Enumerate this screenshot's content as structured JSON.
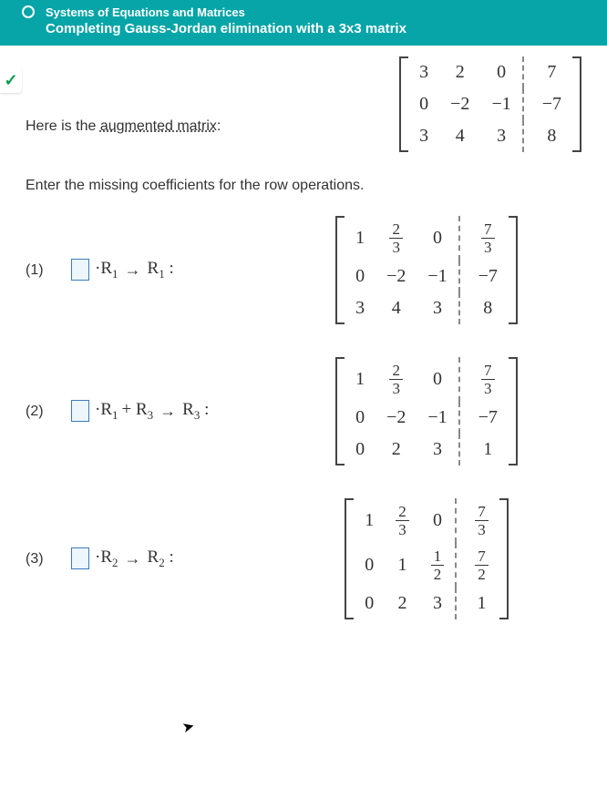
{
  "header": {
    "topic": "Systems of Equations and Matrices",
    "subtitle": "Completing Gauss-Jordan elimination with a 3x3 matrix"
  },
  "intro": {
    "prefix": "Here is the ",
    "link": "augmented matrix",
    "suffix": ":"
  },
  "instruction": "Enter the missing coefficients for the row operations.",
  "matrix0": {
    "rows": [
      [
        "3",
        "2",
        "0",
        "7"
      ],
      [
        "0",
        "−2",
        "−1",
        "−7"
      ],
      [
        "3",
        "4",
        "3",
        "8"
      ]
    ]
  },
  "steps": [
    {
      "label": "(1)",
      "op_parts": {
        "lhs": "·R",
        "lsub": "1",
        "rhs": "R",
        "rsub": "1",
        "plus": ""
      },
      "matrix": {
        "rows": [
          [
            {
              "t": "1"
            },
            {
              "f": [
                "2",
                "3"
              ]
            },
            {
              "t": "0"
            },
            {
              "f": [
                "7",
                "3"
              ]
            }
          ],
          [
            {
              "t": "0"
            },
            {
              "t": "−2"
            },
            {
              "t": "−1"
            },
            {
              "t": "−7"
            }
          ],
          [
            {
              "t": "3"
            },
            {
              "t": "4"
            },
            {
              "t": "3"
            },
            {
              "t": "8"
            }
          ]
        ]
      }
    },
    {
      "label": "(2)",
      "op_parts": {
        "lhs": "·R",
        "lsub": "1",
        "mid": " + R",
        "msub": "3",
        "rhs": "R",
        "rsub": "3"
      },
      "matrix": {
        "rows": [
          [
            {
              "t": "1"
            },
            {
              "f": [
                "2",
                "3"
              ]
            },
            {
              "t": "0"
            },
            {
              "f": [
                "7",
                "3"
              ]
            }
          ],
          [
            {
              "t": "0"
            },
            {
              "t": "−2"
            },
            {
              "t": "−1"
            },
            {
              "t": "−7"
            }
          ],
          [
            {
              "t": "0"
            },
            {
              "t": "2"
            },
            {
              "t": "3"
            },
            {
              "t": "1"
            }
          ]
        ]
      }
    },
    {
      "label": "(3)",
      "op_parts": {
        "lhs": "·R",
        "lsub": "2",
        "rhs": "R",
        "rsub": "2",
        "plus": ""
      },
      "matrix": {
        "rows": [
          [
            {
              "t": "1"
            },
            {
              "f": [
                "2",
                "3"
              ]
            },
            {
              "t": "0"
            },
            {
              "f": [
                "7",
                "3"
              ]
            }
          ],
          [
            {
              "t": "0"
            },
            {
              "t": "1"
            },
            {
              "f": [
                "1",
                "2"
              ]
            },
            {
              "f": [
                "7",
                "2"
              ]
            }
          ],
          [
            {
              "t": "0"
            },
            {
              "t": "2"
            },
            {
              "t": "3"
            },
            {
              "t": "1"
            }
          ]
        ]
      }
    }
  ],
  "colors": {
    "header_bg": "#07a5a8",
    "box_border": "#3a7abf",
    "box_bg": "#eef6fd"
  }
}
